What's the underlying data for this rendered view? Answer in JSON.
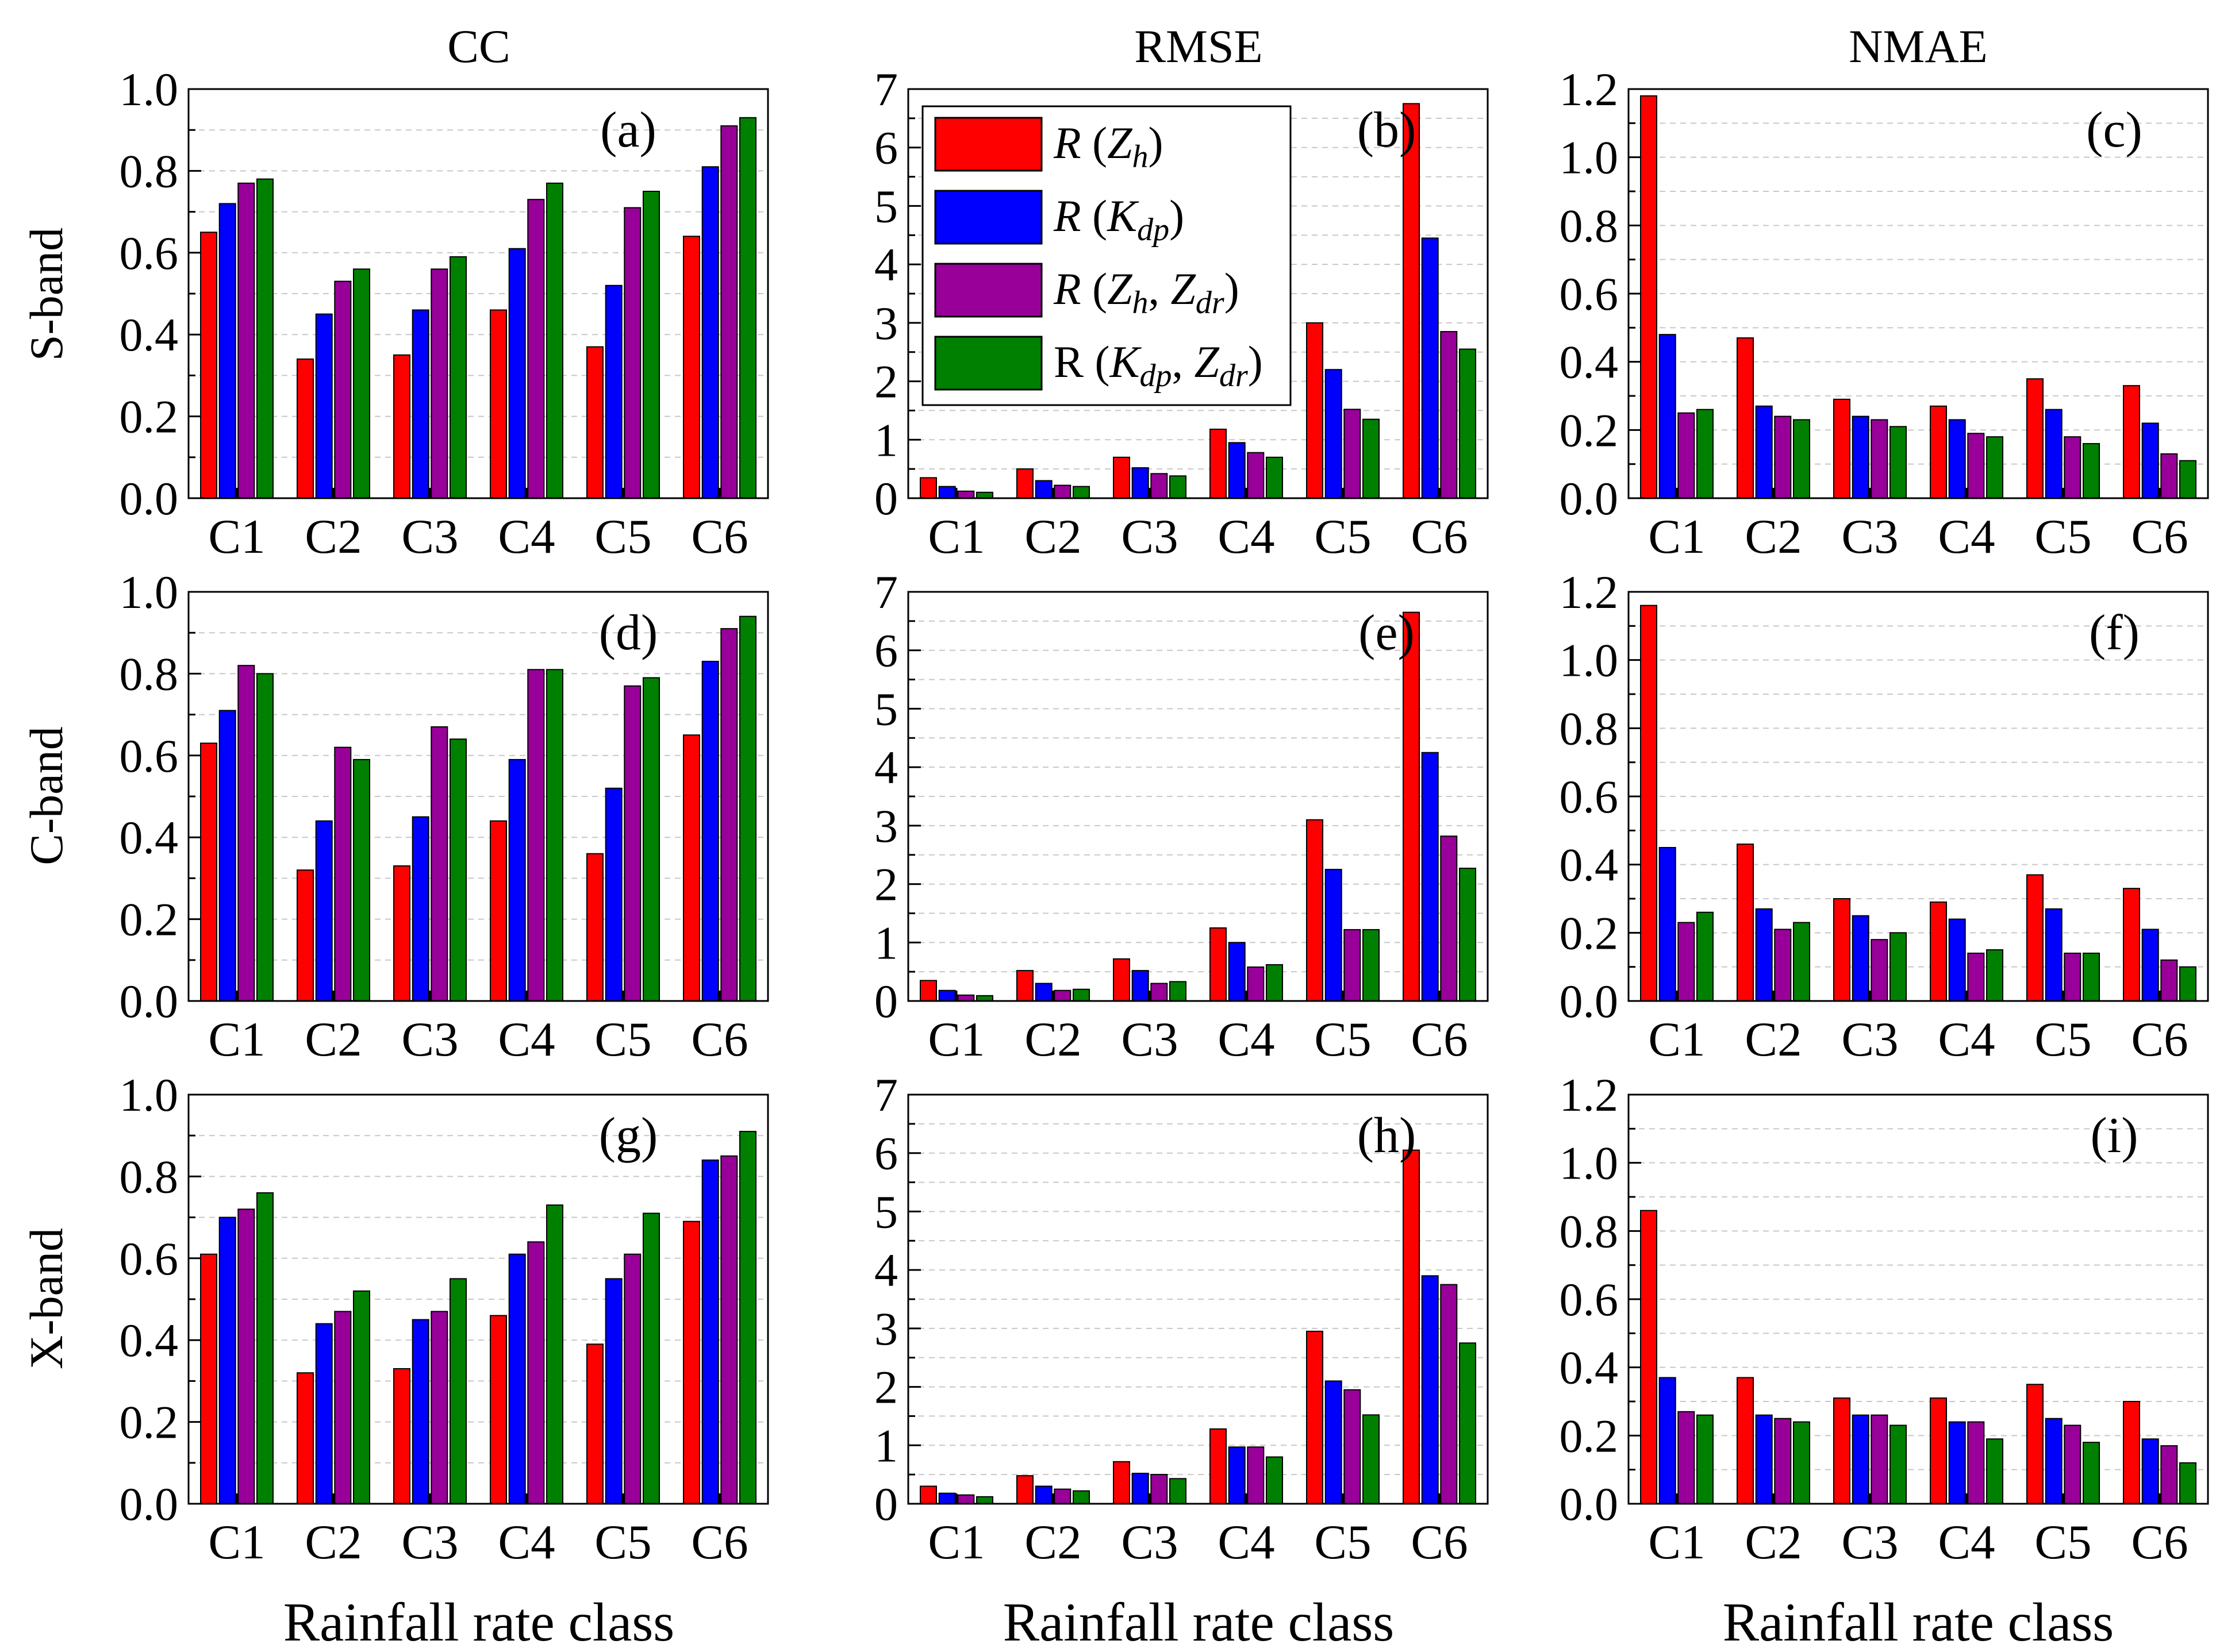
{
  "figure": {
    "column_titles": [
      "CC",
      "RMSE",
      "NMAE"
    ],
    "row_labels": [
      "S-band",
      "C-band",
      "X-band"
    ],
    "xlabel": "Rainfall rate class",
    "colors": {
      "Zh": "#ff0000",
      "Kdp": "#0000ff",
      "ZhZdr": "#990099",
      "KdpZdr": "#008000"
    }
  },
  "legend": {
    "entries": [
      {
        "prefix": "R (",
        "var": "Z",
        "sub": "h",
        "suffix": ")",
        "italic": true
      },
      {
        "prefix": "R (",
        "var": "K",
        "sub": "dp",
        "suffix": ")",
        "italic": true
      },
      {
        "prefix": "R (",
        "var": "Z",
        "sub": "h",
        "sep": ", ",
        "var2": "Z",
        "sub2": "dr",
        "suffix": ")",
        "italic": true
      },
      {
        "prefix": "R (",
        "var": "K",
        "sub": "dp",
        "sep": ", ",
        "var2": "Z",
        "sub2": "dr",
        "suffix": ")",
        "italic": false
      }
    ]
  },
  "chart_data": [
    {
      "type": "bar",
      "panel": "(a)",
      "band": "S-band",
      "metric": "CC",
      "categories": [
        "C1",
        "C2",
        "C3",
        "C4",
        "C5",
        "C6"
      ],
      "ylim": [
        0,
        1.0
      ],
      "yticks": [
        "0.0",
        "0.2",
        "0.4",
        "0.6",
        "0.8",
        "1.0"
      ],
      "series": [
        {
          "name": "R (Zh)",
          "values": [
            0.65,
            0.34,
            0.35,
            0.46,
            0.37,
            0.64
          ]
        },
        {
          "name": "R (Kdp)",
          "values": [
            0.72,
            0.45,
            0.46,
            0.61,
            0.52,
            0.81
          ]
        },
        {
          "name": "R (Zh, Zdr)",
          "values": [
            0.77,
            0.53,
            0.56,
            0.73,
            0.71,
            0.91
          ]
        },
        {
          "name": "R (Kdp, Zdr)",
          "values": [
            0.78,
            0.56,
            0.59,
            0.77,
            0.75,
            0.93
          ]
        }
      ]
    },
    {
      "type": "bar",
      "panel": "(b)",
      "band": "S-band",
      "metric": "RMSE",
      "categories": [
        "C1",
        "C2",
        "C3",
        "C4",
        "C5",
        "C6"
      ],
      "ylim": [
        0,
        7
      ],
      "yticks": [
        "0",
        "1",
        "2",
        "3",
        "4",
        "5",
        "6",
        "7"
      ],
      "series": [
        {
          "name": "R (Zh)",
          "values": [
            0.35,
            0.5,
            0.7,
            1.18,
            3.0,
            6.75
          ]
        },
        {
          "name": "R (Kdp)",
          "values": [
            0.2,
            0.3,
            0.52,
            0.95,
            2.2,
            4.45
          ]
        },
        {
          "name": "R (Zh, Zdr)",
          "values": [
            0.12,
            0.22,
            0.42,
            0.78,
            1.52,
            2.85
          ]
        },
        {
          "name": "R (Kdp, Zdr)",
          "values": [
            0.1,
            0.2,
            0.38,
            0.7,
            1.35,
            2.55
          ]
        }
      ]
    },
    {
      "type": "bar",
      "panel": "(c)",
      "band": "S-band",
      "metric": "NMAE",
      "categories": [
        "C1",
        "C2",
        "C3",
        "C4",
        "C5",
        "C6"
      ],
      "ylim": [
        0,
        1.2
      ],
      "yticks": [
        "0.0",
        "0.2",
        "0.4",
        "0.6",
        "0.8",
        "1.0",
        "1.2"
      ],
      "series": [
        {
          "name": "R (Zh)",
          "values": [
            1.18,
            0.47,
            0.29,
            0.27,
            0.35,
            0.33
          ]
        },
        {
          "name": "R (Kdp)",
          "values": [
            0.48,
            0.27,
            0.24,
            0.23,
            0.26,
            0.22
          ]
        },
        {
          "name": "R (Zh, Zdr)",
          "values": [
            0.25,
            0.24,
            0.23,
            0.19,
            0.18,
            0.13
          ]
        },
        {
          "name": "R (Kdp, Zdr)",
          "values": [
            0.26,
            0.23,
            0.21,
            0.18,
            0.16,
            0.11
          ]
        }
      ]
    },
    {
      "type": "bar",
      "panel": "(d)",
      "band": "C-band",
      "metric": "CC",
      "categories": [
        "C1",
        "C2",
        "C3",
        "C4",
        "C5",
        "C6"
      ],
      "ylim": [
        0,
        1.0
      ],
      "yticks": [
        "0.0",
        "0.2",
        "0.4",
        "0.6",
        "0.8",
        "1.0"
      ],
      "series": [
        {
          "name": "R (Zh)",
          "values": [
            0.63,
            0.32,
            0.33,
            0.44,
            0.36,
            0.65
          ]
        },
        {
          "name": "R (Kdp)",
          "values": [
            0.71,
            0.44,
            0.45,
            0.59,
            0.52,
            0.83
          ]
        },
        {
          "name": "R (Zh, Zdr)",
          "values": [
            0.82,
            0.62,
            0.67,
            0.81,
            0.77,
            0.91
          ]
        },
        {
          "name": "R (Kdp, Zdr)",
          "values": [
            0.8,
            0.59,
            0.64,
            0.81,
            0.79,
            0.94
          ]
        }
      ]
    },
    {
      "type": "bar",
      "panel": "(e)",
      "band": "C-band",
      "metric": "RMSE",
      "categories": [
        "C1",
        "C2",
        "C3",
        "C4",
        "C5",
        "C6"
      ],
      "ylim": [
        0,
        7
      ],
      "yticks": [
        "0",
        "1",
        "2",
        "3",
        "4",
        "5",
        "6",
        "7"
      ],
      "series": [
        {
          "name": "R (Zh)",
          "values": [
            0.35,
            0.52,
            0.72,
            1.25,
            3.1,
            6.65
          ]
        },
        {
          "name": "R (Kdp)",
          "values": [
            0.18,
            0.3,
            0.52,
            1.0,
            2.25,
            4.25
          ]
        },
        {
          "name": "R (Zh, Zdr)",
          "values": [
            0.1,
            0.18,
            0.3,
            0.58,
            1.22,
            2.82
          ]
        },
        {
          "name": "R (Kdp, Zdr)",
          "values": [
            0.09,
            0.2,
            0.33,
            0.62,
            1.22,
            2.27
          ]
        }
      ]
    },
    {
      "type": "bar",
      "panel": "(f)",
      "band": "C-band",
      "metric": "NMAE",
      "categories": [
        "C1",
        "C2",
        "C3",
        "C4",
        "C5",
        "C6"
      ],
      "ylim": [
        0,
        1.2
      ],
      "yticks": [
        "0.0",
        "0.2",
        "0.4",
        "0.6",
        "0.8",
        "1.0",
        "1.2"
      ],
      "series": [
        {
          "name": "R (Zh)",
          "values": [
            1.16,
            0.46,
            0.3,
            0.29,
            0.37,
            0.33
          ]
        },
        {
          "name": "R (Kdp)",
          "values": [
            0.45,
            0.27,
            0.25,
            0.24,
            0.27,
            0.21
          ]
        },
        {
          "name": "R (Zh, Zdr)",
          "values": [
            0.23,
            0.21,
            0.18,
            0.14,
            0.14,
            0.12
          ]
        },
        {
          "name": "R (Kdp, Zdr)",
          "values": [
            0.26,
            0.23,
            0.2,
            0.15,
            0.14,
            0.1
          ]
        }
      ]
    },
    {
      "type": "bar",
      "panel": "(g)",
      "band": "X-band",
      "metric": "CC",
      "categories": [
        "C1",
        "C2",
        "C3",
        "C4",
        "C5",
        "C6"
      ],
      "ylim": [
        0,
        1.0
      ],
      "yticks": [
        "0.0",
        "0.2",
        "0.4",
        "0.6",
        "0.8",
        "1.0"
      ],
      "series": [
        {
          "name": "R (Zh)",
          "values": [
            0.61,
            0.32,
            0.33,
            0.46,
            0.39,
            0.69
          ]
        },
        {
          "name": "R (Kdp)",
          "values": [
            0.7,
            0.44,
            0.45,
            0.61,
            0.55,
            0.84
          ]
        },
        {
          "name": "R (Zh, Zdr)",
          "values": [
            0.72,
            0.47,
            0.47,
            0.64,
            0.61,
            0.85
          ]
        },
        {
          "name": "R (Kdp, Zdr)",
          "values": [
            0.76,
            0.52,
            0.55,
            0.73,
            0.71,
            0.91
          ]
        }
      ]
    },
    {
      "type": "bar",
      "panel": "(h)",
      "band": "X-band",
      "metric": "RMSE",
      "categories": [
        "C1",
        "C2",
        "C3",
        "C4",
        "C5",
        "C6"
      ],
      "ylim": [
        0,
        7
      ],
      "yticks": [
        "0",
        "1",
        "2",
        "3",
        "4",
        "5",
        "6",
        "7"
      ],
      "series": [
        {
          "name": "R (Zh)",
          "values": [
            0.3,
            0.48,
            0.72,
            1.28,
            2.95,
            6.05
          ]
        },
        {
          "name": "R (Kdp)",
          "values": [
            0.18,
            0.3,
            0.52,
            0.97,
            2.1,
            3.9
          ]
        },
        {
          "name": "R (Zh, Zdr)",
          "values": [
            0.15,
            0.25,
            0.5,
            0.97,
            1.95,
            3.75
          ]
        },
        {
          "name": "R (Kdp, Zdr)",
          "values": [
            0.12,
            0.22,
            0.43,
            0.8,
            1.52,
            2.75
          ]
        }
      ]
    },
    {
      "type": "bar",
      "panel": "(i)",
      "band": "X-band",
      "metric": "NMAE",
      "categories": [
        "C1",
        "C2",
        "C3",
        "C4",
        "C5",
        "C6"
      ],
      "ylim": [
        0,
        1.2
      ],
      "yticks": [
        "0.0",
        "0.2",
        "0.4",
        "0.6",
        "0.8",
        "1.0",
        "1.2"
      ],
      "series": [
        {
          "name": "R (Zh)",
          "values": [
            0.86,
            0.37,
            0.31,
            0.31,
            0.35,
            0.3
          ]
        },
        {
          "name": "R (Kdp)",
          "values": [
            0.37,
            0.26,
            0.26,
            0.24,
            0.25,
            0.19
          ]
        },
        {
          "name": "R (Zh, Zdr)",
          "values": [
            0.27,
            0.25,
            0.26,
            0.24,
            0.23,
            0.17
          ]
        },
        {
          "name": "R (Kdp, Zdr)",
          "values": [
            0.26,
            0.24,
            0.23,
            0.19,
            0.18,
            0.12
          ]
        }
      ]
    }
  ]
}
